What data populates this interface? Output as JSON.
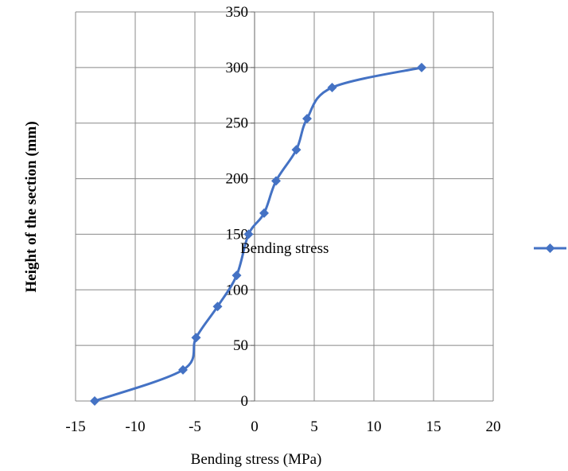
{
  "chart_data": {
    "type": "line",
    "title": "",
    "xlabel": "Bending stress (MPa)",
    "ylabel": "Height of the section (mm)",
    "xlim": [
      -15,
      20
    ],
    "ylim": [
      0,
      350
    ],
    "x_ticks": [
      "-15",
      "-10",
      "-5",
      "0",
      "5",
      "10",
      "15",
      "20"
    ],
    "y_ticks": [
      "0",
      "50",
      "100",
      "150",
      "200",
      "250",
      "300",
      "350"
    ],
    "grid": true,
    "smooth": true,
    "annotation": "Bending stress",
    "legend": {
      "position": "right",
      "entries": [
        ""
      ]
    },
    "series": [
      {
        "name": "",
        "color": "#4472C4",
        "marker": "diamond",
        "x": [
          -13.4,
          -6.0,
          -4.9,
          -3.1,
          -1.5,
          -0.5,
          0.8,
          1.8,
          3.5,
          4.4,
          6.5,
          14.0
        ],
        "y": [
          0,
          28,
          57,
          85,
          113,
          150,
          169,
          198,
          226,
          254,
          282,
          300
        ]
      }
    ]
  }
}
